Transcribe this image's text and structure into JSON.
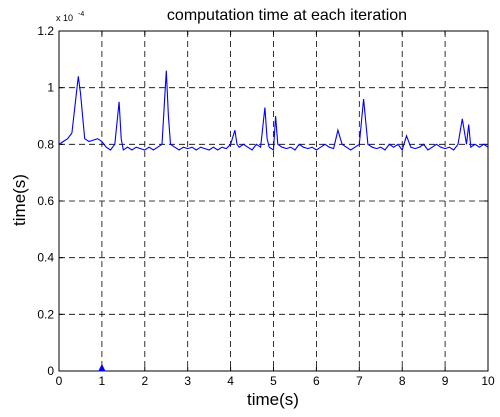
{
  "chart_data": {
    "type": "line",
    "title": "computation time at each iteration",
    "xlabel": "time(s)",
    "ylabel": "time(s)",
    "y_exponent_label": "x 10",
    "y_exponent_power": "-4",
    "xlim": [
      0,
      10
    ],
    "ylim": [
      0,
      1.2
    ],
    "x_ticks": [
      "0",
      "1",
      "2",
      "3",
      "4",
      "5",
      "6",
      "7",
      "8",
      "9",
      "10"
    ],
    "y_ticks": [
      "0",
      "0.2",
      "0.4",
      "0.6",
      "0.8",
      "1",
      "1.2"
    ],
    "grid": true,
    "line_color": "#0000ff",
    "marker": {
      "x": 1.0,
      "y": 0.0,
      "color": "#0000ff"
    },
    "series": [
      {
        "x": [
          0.0,
          0.1,
          0.2,
          0.3,
          0.45,
          0.5,
          0.6,
          0.7,
          0.8,
          0.9,
          1.0,
          1.1,
          1.2,
          1.3,
          1.4,
          1.45,
          1.5,
          1.6,
          1.7,
          1.8,
          1.9,
          2.0,
          2.1,
          2.2,
          2.3,
          2.4,
          2.5,
          2.55,
          2.6,
          2.7,
          2.8,
          2.9,
          3.0,
          3.1,
          3.2,
          3.3,
          3.4,
          3.5,
          3.6,
          3.7,
          3.8,
          3.9,
          4.0,
          4.1,
          4.15,
          4.2,
          4.3,
          4.4,
          4.5,
          4.6,
          4.7,
          4.8,
          4.85,
          4.9,
          5.0,
          5.05,
          5.1,
          5.2,
          5.3,
          5.4,
          5.5,
          5.6,
          5.7,
          5.8,
          5.9,
          6.0,
          6.1,
          6.2,
          6.3,
          6.4,
          6.5,
          6.6,
          6.7,
          6.8,
          6.9,
          7.0,
          7.1,
          7.2,
          7.3,
          7.4,
          7.5,
          7.6,
          7.7,
          7.8,
          7.9,
          8.0,
          8.1,
          8.2,
          8.3,
          8.4,
          8.5,
          8.6,
          8.7,
          8.8,
          8.9,
          9.0,
          9.1,
          9.2,
          9.3,
          9.4,
          9.5,
          9.55,
          9.6,
          9.7,
          9.8,
          9.9,
          10.0
        ],
        "y": [
          0.8,
          0.81,
          0.82,
          0.84,
          1.04,
          0.98,
          0.82,
          0.81,
          0.815,
          0.82,
          0.81,
          0.79,
          0.78,
          0.8,
          0.95,
          0.82,
          0.78,
          0.79,
          0.78,
          0.79,
          0.785,
          0.78,
          0.79,
          0.78,
          0.79,
          0.8,
          1.06,
          0.9,
          0.8,
          0.79,
          0.78,
          0.79,
          0.785,
          0.79,
          0.78,
          0.79,
          0.785,
          0.78,
          0.79,
          0.78,
          0.79,
          0.785,
          0.8,
          0.85,
          0.8,
          0.79,
          0.8,
          0.79,
          0.78,
          0.8,
          0.79,
          0.93,
          0.82,
          0.79,
          0.78,
          0.9,
          0.8,
          0.79,
          0.785,
          0.79,
          0.78,
          0.8,
          0.79,
          0.785,
          0.79,
          0.78,
          0.79,
          0.8,
          0.79,
          0.785,
          0.85,
          0.8,
          0.79,
          0.78,
          0.79,
          0.8,
          0.96,
          0.8,
          0.79,
          0.785,
          0.79,
          0.78,
          0.8,
          0.79,
          0.8,
          0.78,
          0.83,
          0.79,
          0.785,
          0.79,
          0.8,
          0.78,
          0.79,
          0.8,
          0.79,
          0.785,
          0.79,
          0.78,
          0.8,
          0.89,
          0.8,
          0.87,
          0.79,
          0.8,
          0.79,
          0.8,
          0.79
        ]
      }
    ]
  }
}
